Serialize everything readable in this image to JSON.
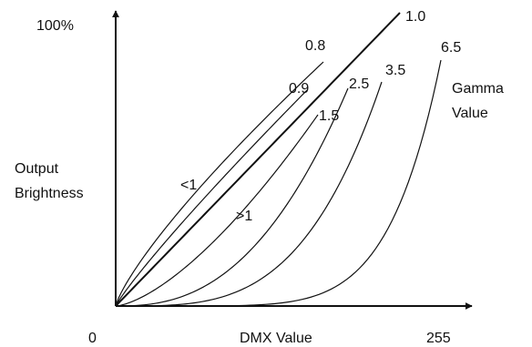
{
  "diagram": {
    "y_max_label": "100%",
    "origin_label": "0",
    "x_axis_label": "DMX Value",
    "x_max_label": "255",
    "y_axis_label_line1": "Output",
    "y_axis_label_line2": "Brightness",
    "legend_title_line1": "Gamma",
    "legend_title_line2": "Value",
    "region_below_one": "<1",
    "region_above_one": ">1",
    "colors": {
      "axis": "#111111",
      "curve": "#111111",
      "background": "#ffffff"
    },
    "curves": [
      {
        "gamma": 0.8,
        "label": "0.8"
      },
      {
        "gamma": 0.9,
        "label": "0.9"
      },
      {
        "gamma": 1.0,
        "label": "1.0"
      },
      {
        "gamma": 1.5,
        "label": "1.5"
      },
      {
        "gamma": 2.5,
        "label": "2.5"
      },
      {
        "gamma": 3.5,
        "label": "3.5"
      },
      {
        "gamma": 6.5,
        "label": "6.5"
      }
    ]
  }
}
